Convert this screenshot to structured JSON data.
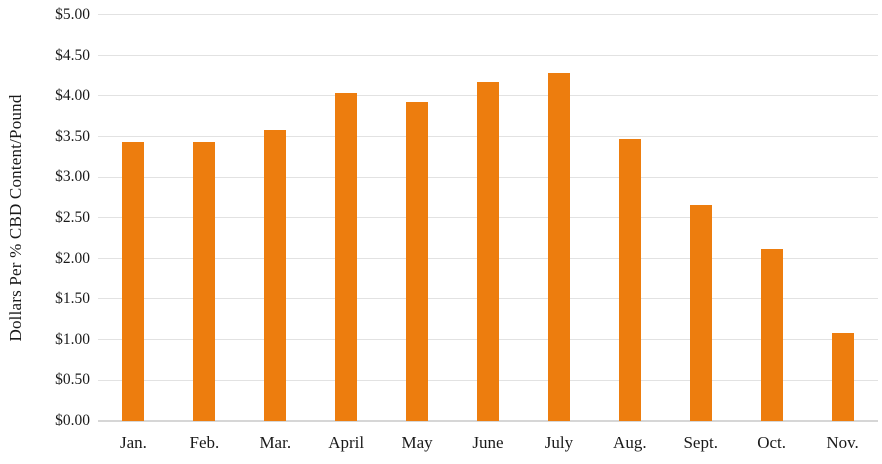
{
  "figure": {
    "background": "#ffffff",
    "text_color": "#1a1a1a",
    "gridline_color": "#e2e2e2",
    "axis_line_color": "#d6d6d6"
  },
  "y_axis": {
    "title": "Dollars Per % CBD Content/Pound",
    "tick_labels": [
      "$0.00",
      "$0.50",
      "$1.00",
      "$1.50",
      "$2.00",
      "$2.50",
      "$3.00",
      "$3.50",
      "$4.00",
      "$4.50",
      "$5.00"
    ]
  },
  "chart_data": {
    "type": "bar",
    "title": "",
    "xlabel": "",
    "ylabel": "Dollars Per % CBD Content/Pound",
    "categories": [
      "Jan.",
      "Feb.",
      "Mar.",
      "April",
      "May",
      "June",
      "July",
      "Aug.",
      "Sept.",
      "Oct.",
      "Nov."
    ],
    "values": [
      3.43,
      3.43,
      3.58,
      4.04,
      3.93,
      4.17,
      4.28,
      3.47,
      2.66,
      2.12,
      1.09
    ],
    "ylim": [
      0,
      5
    ],
    "ytick_step": 0.5,
    "grid": true,
    "legend": false,
    "bar_color": "#ED7D0E"
  }
}
